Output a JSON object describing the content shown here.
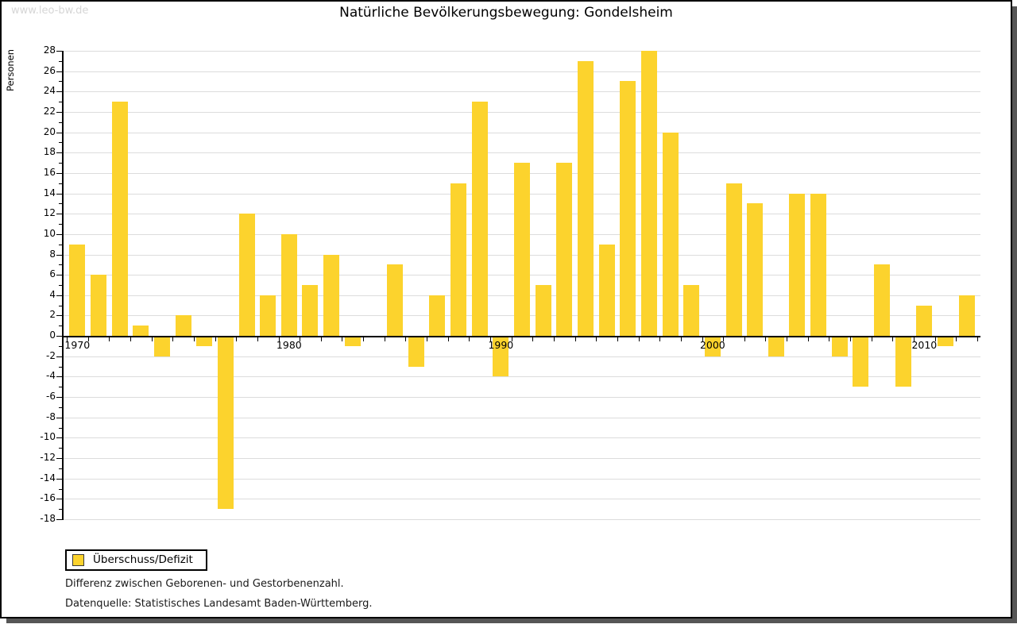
{
  "watermark": "www.leo-bw.de",
  "title": "Natürliche Bevölkerungsbewegung: Gondelsheim",
  "legend": {
    "label": "Überschuss/Defizit"
  },
  "footnotes": {
    "line1": "Differenz zwischen Geborenen- und Gestorbenenzahl.",
    "line2": "Datenquelle: Statistisches Landesamt Baden-Württemberg."
  },
  "chart_data": {
    "type": "bar",
    "title": "Natürliche Bevölkerungsbewegung: Gondelsheim",
    "xlabel": "",
    "ylabel": "Personen",
    "series_name": "Überschuss/Defizit",
    "categories": [
      1970,
      1971,
      1972,
      1973,
      1974,
      1975,
      1976,
      1977,
      1978,
      1979,
      1980,
      1981,
      1982,
      1983,
      1984,
      1985,
      1986,
      1987,
      1988,
      1989,
      1990,
      1991,
      1992,
      1993,
      1994,
      1995,
      1996,
      1997,
      1998,
      1999,
      2000,
      2001,
      2002,
      2003,
      2004,
      2005,
      2006,
      2007,
      2008,
      2009,
      2010,
      2011,
      2012
    ],
    "values": [
      9,
      6,
      23,
      1,
      -2,
      2,
      -1,
      -17,
      12,
      4,
      10,
      5,
      8,
      -1,
      0,
      7,
      -3,
      4,
      15,
      23,
      -4,
      17,
      5,
      17,
      27,
      9,
      25,
      28,
      20,
      5,
      -2,
      15,
      13,
      -2,
      14,
      14,
      -2,
      -5,
      7,
      -5,
      3,
      -1,
      4
    ],
    "ylim": [
      -18,
      28
    ],
    "ytick_step": 2,
    "minor_tick_step": 1,
    "yticks": [
      -18,
      -16,
      -14,
      -12,
      -10,
      -8,
      -6,
      -4,
      -2,
      0,
      2,
      4,
      6,
      8,
      10,
      12,
      14,
      16,
      18,
      20,
      22,
      24,
      26,
      28
    ],
    "xtick_labels": [
      "1970",
      "1980",
      "1990",
      "2000",
      "2010"
    ],
    "bar_color": "#FCD32D",
    "grid": true,
    "gridline_color": "#dcdcdc",
    "legend_position": "bottom-left"
  }
}
